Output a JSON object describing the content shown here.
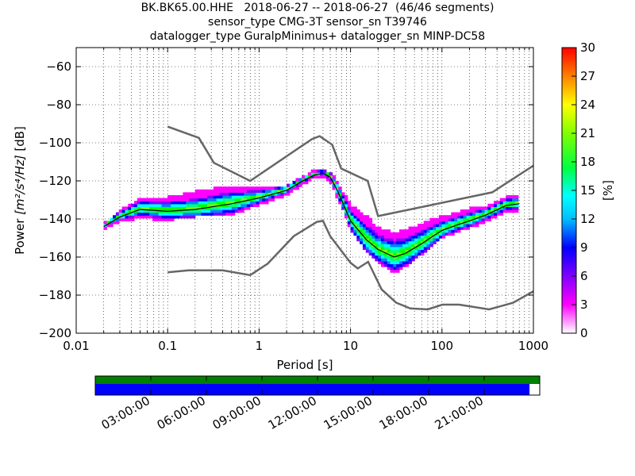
{
  "title_lines": [
    "BK.BK65.00.HHE   2018-06-27 -- 2018-06-27  (46/46 segments)",
    "sensor_type CMG-3T sensor_sn T39746",
    "datalogger_type GuralpMinimus+ datalogger_sn MINP-DC58"
  ],
  "chart_data": {
    "type": "heatmap",
    "title": "BK.BK65.00.HHE   2018-06-27 -- 2018-06-27  (46/46 segments)",
    "xlabel": "Period [s]",
    "ylabel_prefix": "Power ",
    "ylabel_units": "[m²/s⁴/Hz]",
    "ylabel_suffix": " [dB]",
    "x_scale": "log",
    "xlim": [
      0.01,
      1000
    ],
    "ylim": [
      -200,
      -50
    ],
    "x_ticks": [
      0.01,
      0.1,
      1,
      10,
      100,
      1000
    ],
    "x_tick_labels": [
      "0.01",
      "0.1",
      "1",
      "10",
      "100",
      "1000"
    ],
    "y_ticks": [
      -200,
      -180,
      -160,
      -140,
      -120,
      -100,
      -80,
      -60
    ],
    "y_tick_labels": [
      "−200",
      "−180",
      "−160",
      "−140",
      "−120",
      "−100",
      "−80",
      "−60"
    ],
    "grid": true,
    "colorbar": {
      "label": "[%]",
      "range": [
        0,
        30
      ],
      "ticks": [
        0,
        3,
        6,
        9,
        12,
        15,
        18,
        21,
        24,
        27,
        30
      ],
      "colormap": [
        "#ffffff",
        "#ff00ff",
        "#8000ff",
        "#0000ff",
        "#0080ff",
        "#00ffff",
        "#00ff80",
        "#00ff00",
        "#80ff00",
        "#ffff00",
        "#ff8000",
        "#ff0000"
      ]
    },
    "mode_line": {
      "name": "mode",
      "period": [
        0.02,
        0.03,
        0.05,
        0.1,
        0.2,
        0.5,
        1,
        2,
        3,
        4,
        5,
        6,
        7,
        8,
        10,
        15,
        20,
        30,
        40,
        60,
        80,
        100,
        150,
        200,
        300,
        500,
        700
      ],
      "power": [
        -144,
        -139,
        -135,
        -136,
        -135,
        -132,
        -129,
        -125,
        -120,
        -117,
        -116,
        -118,
        -124,
        -130,
        -141,
        -151,
        -156,
        -160,
        -158,
        -153,
        -149,
        -146,
        -143,
        -141,
        -138,
        -133,
        -132
      ]
    },
    "psd_spread": {
      "period": [
        0.02,
        0.03,
        0.05,
        0.1,
        0.2,
        0.5,
        1,
        2,
        3,
        4,
        5,
        6,
        7,
        8,
        10,
        15,
        20,
        30,
        40,
        60,
        80,
        100,
        150,
        200,
        300,
        500,
        700
      ],
      "power_low": [
        -145,
        -141,
        -139,
        -140,
        -138,
        -137,
        -132,
        -127,
        -121,
        -118,
        -117,
        -120,
        -127,
        -133,
        -145,
        -157,
        -162,
        -168,
        -164,
        -158,
        -153,
        -149,
        -146,
        -144,
        -141,
        -136,
        -135
      ],
      "power_high": [
        -143,
        -136,
        -130,
        -129,
        -126,
        -123,
        -124,
        -123,
        -118,
        -115,
        -115,
        -116,
        -120,
        -125,
        -133,
        -139,
        -145,
        -148,
        -146,
        -143,
        -140,
        -139,
        -137,
        -135,
        -134,
        -129,
        -128
      ]
    },
    "noise_models": [
      {
        "period": [
          0.1,
          0.17,
          0.4,
          0.8,
          1.24,
          2.4,
          4.3,
          5,
          6,
          10,
          12,
          15.6,
          21.9,
          31.6,
          45,
          70,
          101,
          154,
          328,
          600,
          1000
        ],
        "power": [
          -168,
          -167,
          -167,
          -169.5,
          -163.5,
          -149,
          -141.5,
          -141,
          -149,
          -163,
          -166,
          -162.5,
          -177,
          -184,
          -187,
          -187.5,
          -185,
          -185,
          -187.5,
          -184,
          -178
        ]
      },
      {
        "period": [
          0.1,
          0.22,
          0.32,
          0.8,
          3.8,
          4.6,
          6.3,
          7.9,
          15.4,
          20,
          354.8,
          1000
        ],
        "power": [
          -91.5,
          -97.4,
          -110.5,
          -120,
          -98,
          -96.5,
          -101,
          -113.5,
          -120,
          -138.5,
          -126,
          -112
        ]
      }
    ]
  },
  "timeline": {
    "tick_labels": [
      "03:00:00",
      "06:00:00",
      "09:00:00",
      "12:00:00",
      "15:00:00",
      "18:00:00",
      "21:00:00"
    ],
    "tick_hours": [
      3,
      6,
      9,
      12,
      15,
      18,
      21
    ],
    "span_hours": 24,
    "data_coverage_fraction": 0.977,
    "top_bar_color": "#008000",
    "bottom_bar_color": "#0000ff"
  }
}
